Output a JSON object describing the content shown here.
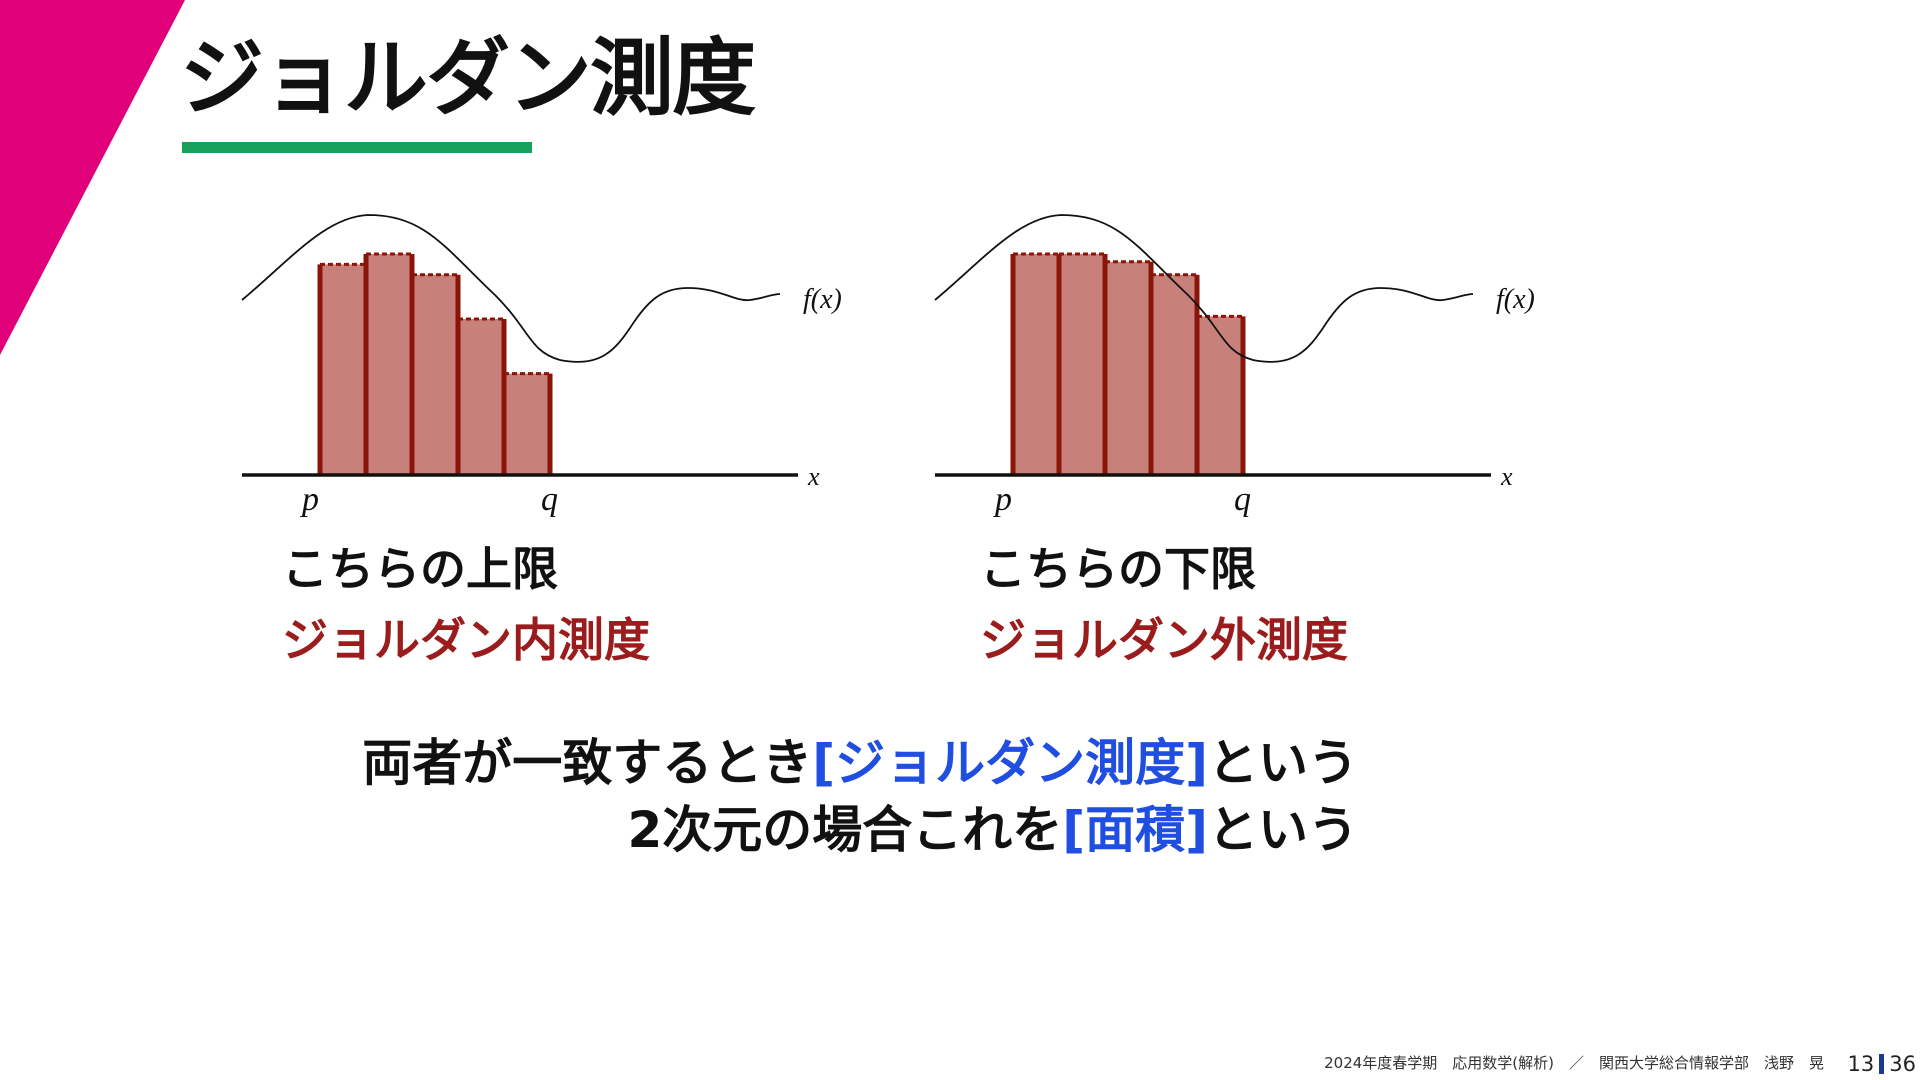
{
  "slide": {
    "title": "ジョルダン測度",
    "accent_colors": {
      "corner": "#e0007a",
      "title_underline": "#16a05a",
      "bar_fill": "#c8817a",
      "bar_edge": "#8b1408",
      "measure_text": "#9b1c1c",
      "keyword_text": "#1f4ee0"
    }
  },
  "graphs": {
    "function_label": "f(x)",
    "axis_label": "x",
    "left_bound": "p",
    "right_bound": "q",
    "inner_bar_tops": [
      0.81,
      0.85,
      0.77,
      0.6,
      0.39
    ],
    "outer_bar_tops": [
      0.85,
      0.85,
      0.82,
      0.77,
      0.61
    ]
  },
  "captions": {
    "left_line1": "こちらの上限",
    "left_line2": "ジョルダン内測度",
    "right_line1": "こちらの下限",
    "right_line2": "ジョルダン外測度"
  },
  "summary": {
    "line1_before": "両者が一致するとき",
    "line1_keyword": "[ジョルダン測度]",
    "line1_after": "という",
    "line2_before": "2次元の場合これを",
    "line2_keyword": "[面積]",
    "line2_after": "という"
  },
  "footer": {
    "text": "2024年度春学期　応用数学(解析)　／　関西大学総合情報学部　浅野　晃",
    "page_current": "13",
    "page_total": "36"
  }
}
